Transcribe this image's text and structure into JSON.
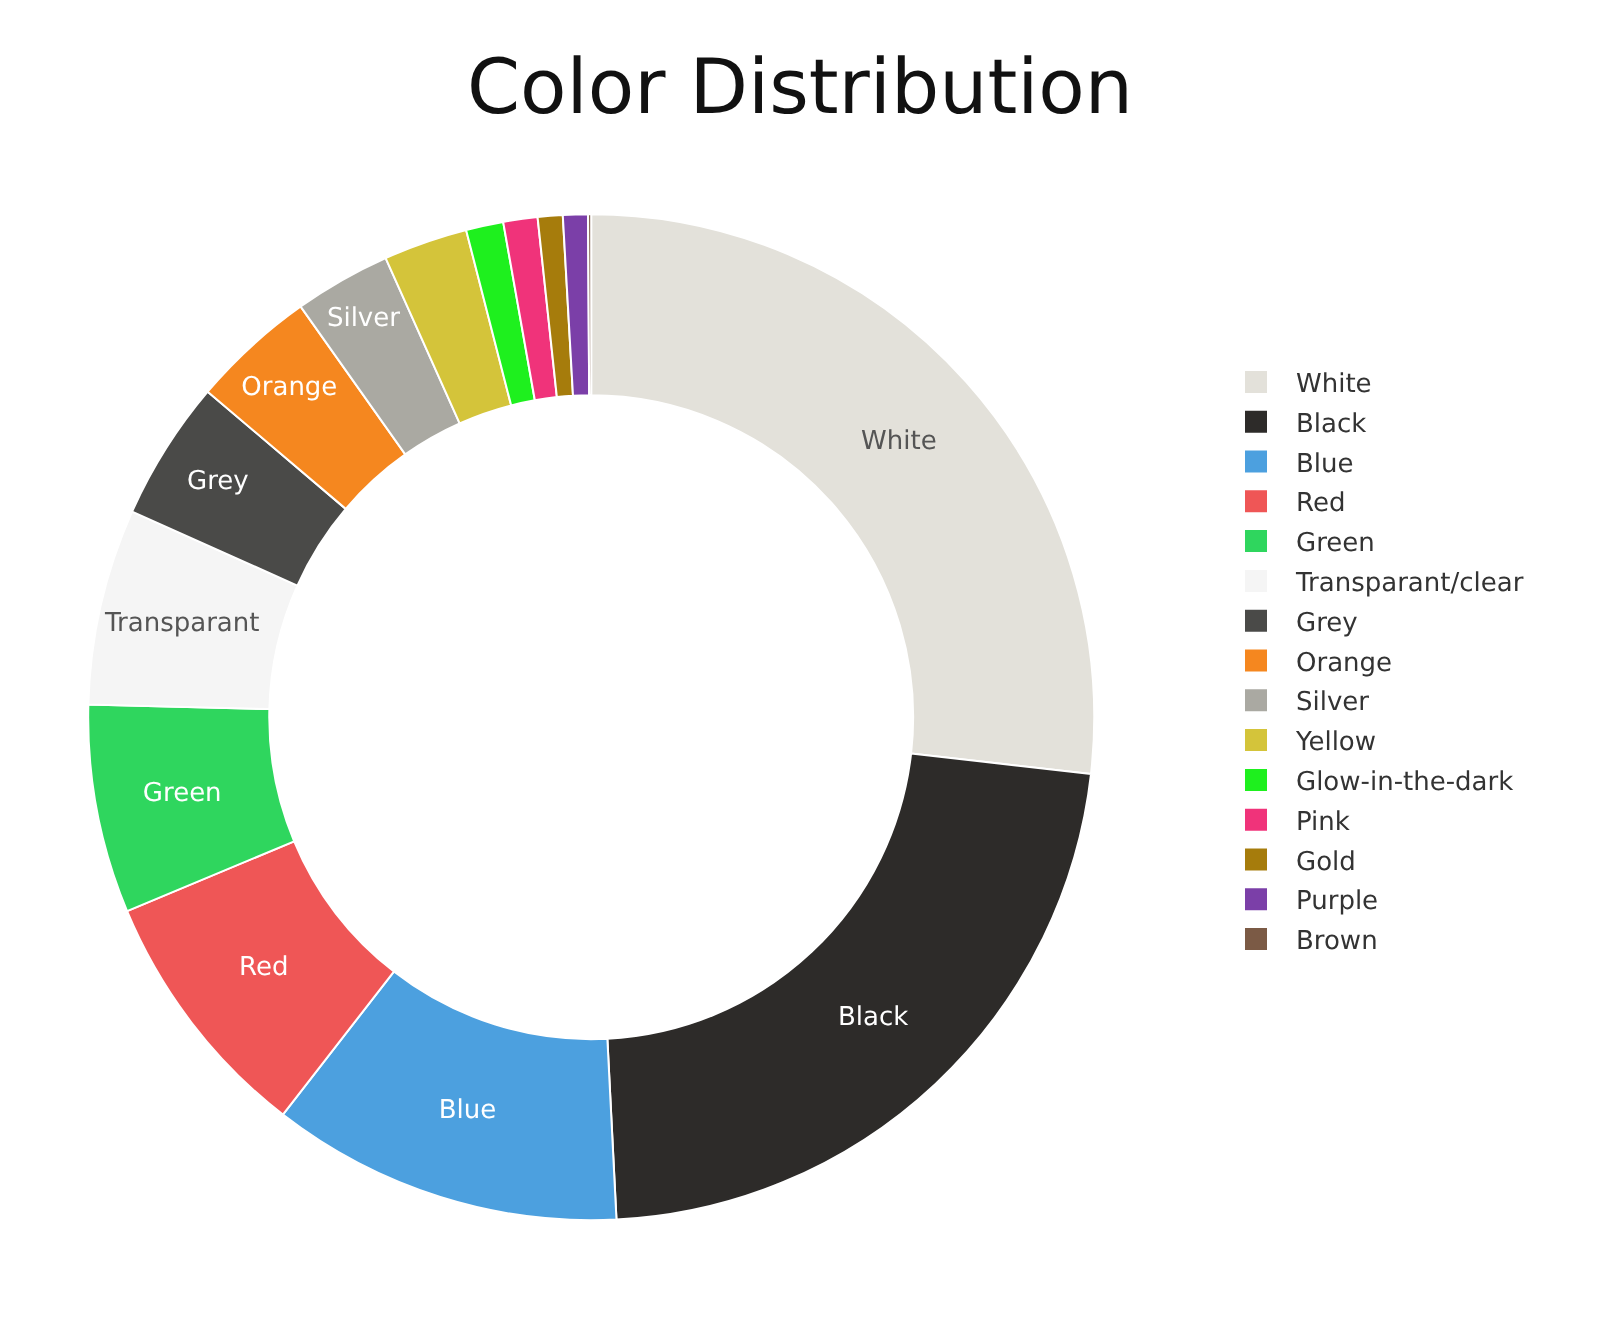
{
  "chart_data": {
    "type": "donut",
    "title": "Color Distribution",
    "categories": [
      "White",
      "Black",
      "Blue",
      "Red",
      "Green",
      "Transparant/clear",
      "Grey",
      "Orange",
      "Silver",
      "Yellow",
      "Glow-in-the-dark",
      "Pink",
      "Gold",
      "Purple",
      "Brown"
    ],
    "values": [
      26.8,
      22.4,
      11.3,
      8.2,
      6.7,
      6.3,
      4.5,
      4.0,
      3.1,
      2.7,
      1.2,
      1.1,
      0.8,
      0.8,
      0.1
    ],
    "colors": [
      "#e3e1da",
      "#2d2b29",
      "#4ca0df",
      "#ef5656",
      "#2fd65e",
      "#f5f5f5",
      "#4a4a48",
      "#f5871f",
      "#aaa9a2",
      "#d4c43a",
      "#1ef01e",
      "#f0337a",
      "#a67c0c",
      "#7b3fa8",
      "#7b5a45"
    ],
    "value_labels": [
      "White",
      "Black",
      "Blue",
      "Red",
      "Green",
      "Transparant",
      "Grey",
      "Orange",
      "Silver",
      null,
      null,
      null,
      null,
      null,
      null
    ],
    "legend": "right"
  }
}
